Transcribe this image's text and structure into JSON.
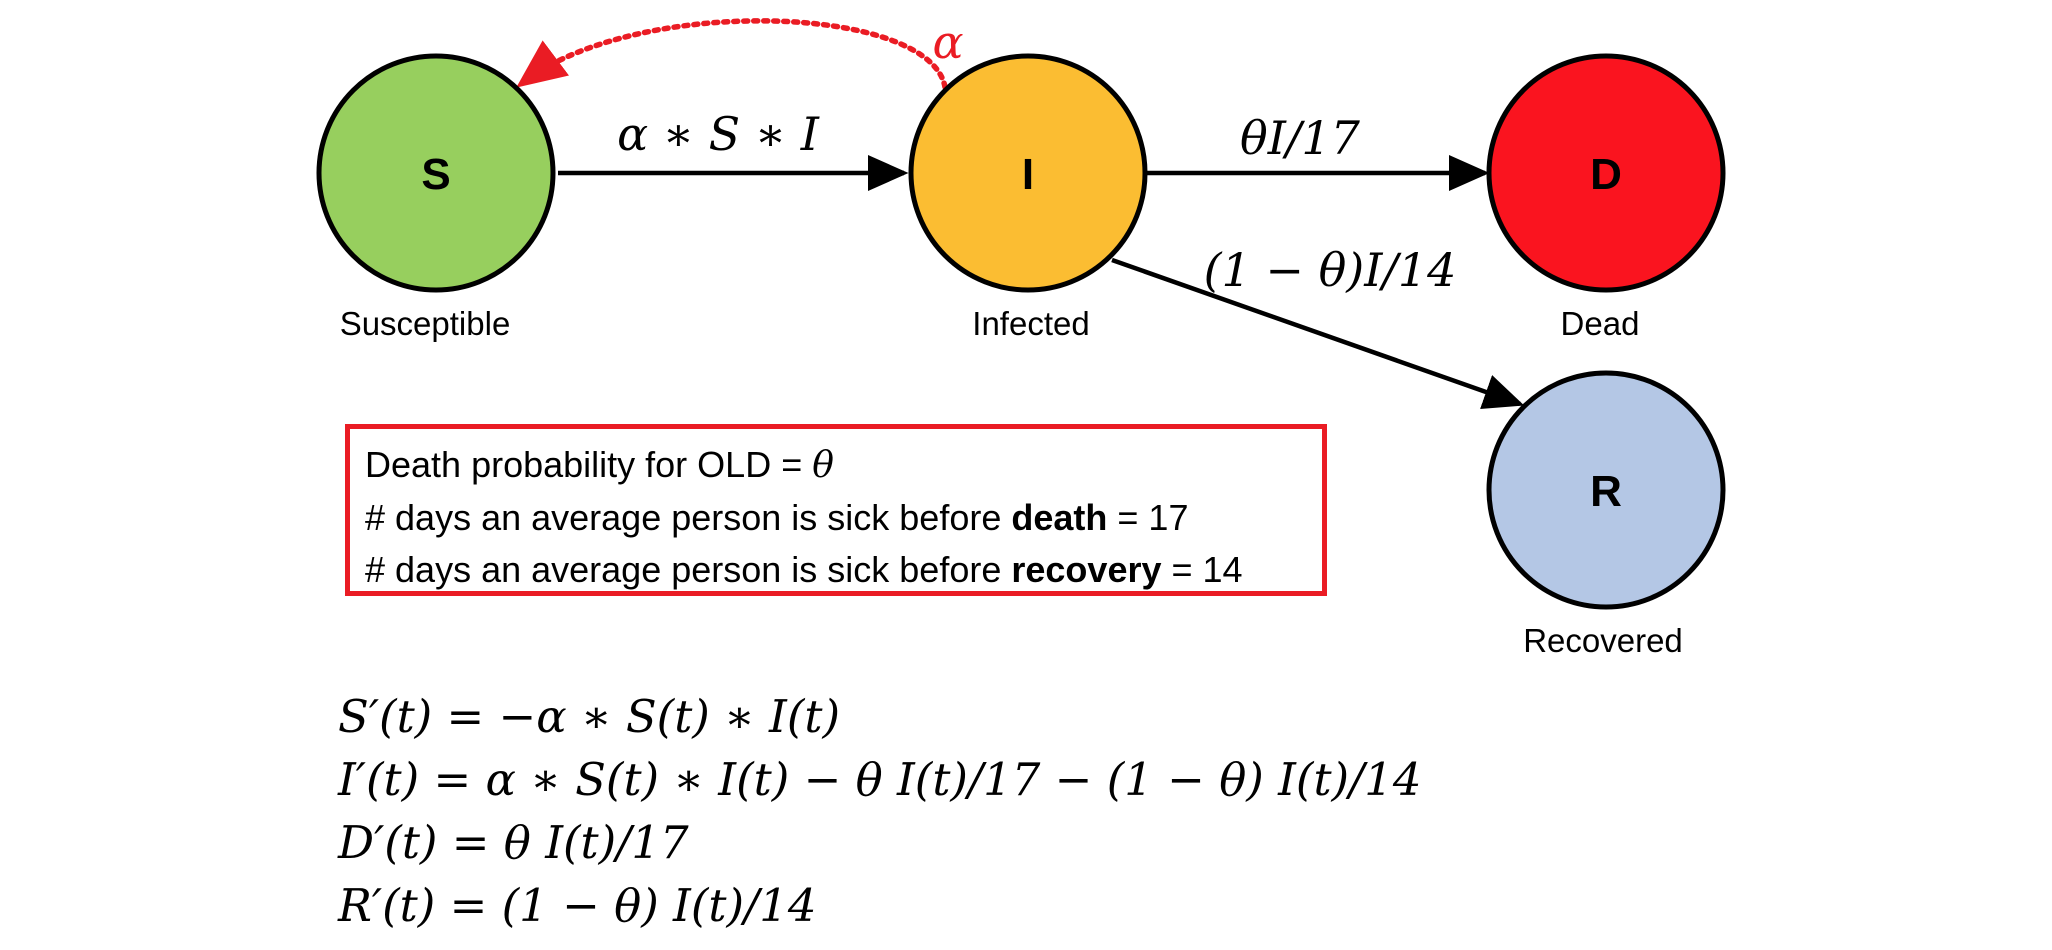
{
  "nodes": {
    "S": {
      "letter": "S",
      "label": "Susceptible",
      "color": "#97cf5e"
    },
    "I": {
      "letter": "I",
      "label": "Infected",
      "color": "#fbbd32"
    },
    "D": {
      "letter": "D",
      "label": "Dead",
      "color": "#fa141f"
    },
    "R": {
      "letter": "R",
      "label": "Recovered",
      "color": "#b4c7e5"
    }
  },
  "edges": {
    "s_to_i": "α ∗ S ∗ I",
    "i_to_d": "θI/17",
    "i_to_r": "(1 − θ)I/14",
    "feedback": "α"
  },
  "colors": {
    "stroke": "#000000",
    "accent_red": "#ea1c24"
  },
  "info": {
    "line1_text": "Death probability for OLD = ",
    "line1_symbol": "θ",
    "line2_prefix": "# days an average person is sick before ",
    "line2_bold": "death",
    "line2_suffix": " = 17",
    "line3_prefix": "# days an average person is sick before ",
    "line3_bold": "recovery",
    "line3_suffix": " = 14"
  },
  "equations": [
    "S′(t) = −α ∗ S(t) ∗ I(t)",
    "I′(t) = α ∗ S(t) ∗ I(t) − θ I(t)/17 − (1 − θ) I(t)/14",
    "D′(t) = θ I(t)/17",
    "R′(t) = (1 − θ) I(t)/14"
  ]
}
